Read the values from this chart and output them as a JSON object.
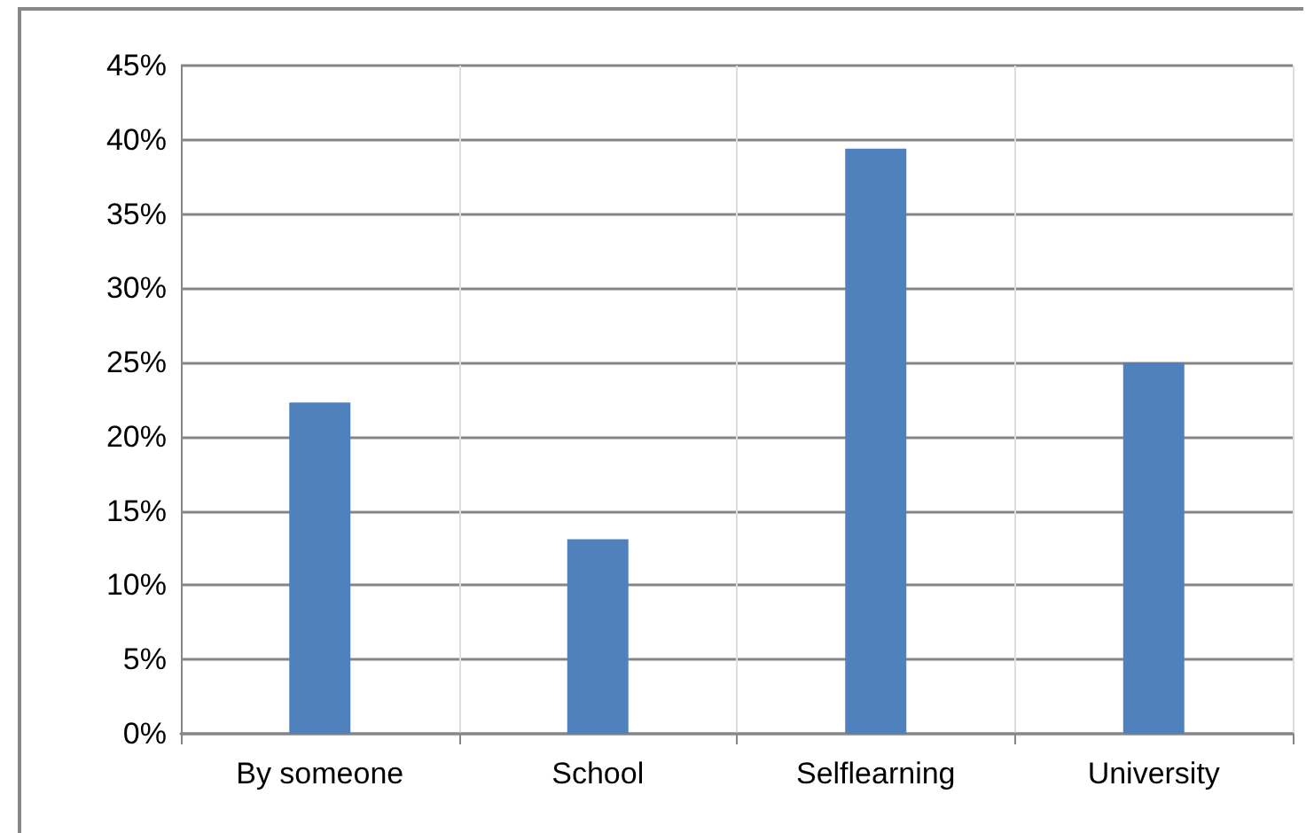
{
  "chart_data": {
    "type": "bar",
    "categories": [
      "By someone",
      "School",
      "Selflearning",
      "University"
    ],
    "values": [
      22.3,
      13.1,
      39.4,
      25.0
    ],
    "color": "#4f81bd",
    "ylim": [
      0,
      45
    ],
    "yticks": [
      {
        "value": 0,
        "label": "0%"
      },
      {
        "value": 5,
        "label": "5%"
      },
      {
        "value": 10,
        "label": "10%"
      },
      {
        "value": 15,
        "label": "15%"
      },
      {
        "value": 20,
        "label": "20%"
      },
      {
        "value": 25,
        "label": "25%"
      },
      {
        "value": 30,
        "label": "30%"
      },
      {
        "value": 35,
        "label": "35%"
      },
      {
        "value": 40,
        "label": "40%"
      },
      {
        "value": 45,
        "label": "45%"
      }
    ],
    "grid": true
  }
}
